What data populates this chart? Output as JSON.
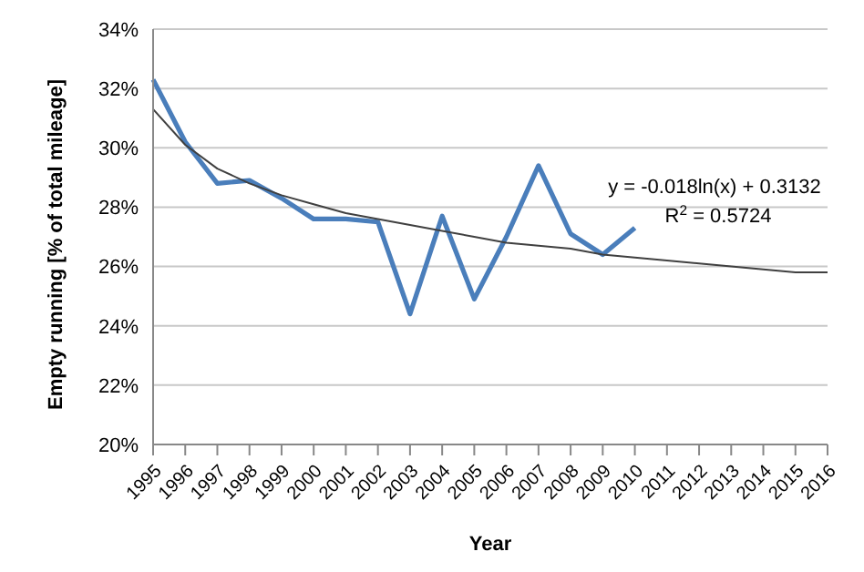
{
  "chart_data": {
    "type": "line",
    "xlabel": "Year",
    "ylabel": "Empty running [% of total mileage]",
    "categories": [
      "1995",
      "1996",
      "1997",
      "1998",
      "1999",
      "2000",
      "2001",
      "2002",
      "2003",
      "2004",
      "2005",
      "2006",
      "2007",
      "2008",
      "2009",
      "2010",
      "2011",
      "2012",
      "2013",
      "2014",
      "2015",
      "2016"
    ],
    "series": [
      {
        "color": "#4a7ebb",
        "values": [
          32.3,
          30.2,
          28.8,
          28.9,
          28.3,
          27.6,
          27.6,
          27.5,
          24.4,
          27.7,
          24.9,
          27.0,
          29.4,
          27.1,
          26.4,
          27.3,
          null,
          null,
          null,
          null,
          null,
          null
        ]
      },
      {
        "color": "#404040",
        "values": [
          31.3,
          30.1,
          29.3,
          28.8,
          28.4,
          28.1,
          27.8,
          27.6,
          27.4,
          27.2,
          27.0,
          26.8,
          26.7,
          26.6,
          26.4,
          26.3,
          26.2,
          26.1,
          26.0,
          25.9,
          25.8,
          25.8
        ]
      }
    ],
    "ylim": [
      20,
      34
    ],
    "yticks": [
      {
        "value": 20,
        "label": "20%"
      },
      {
        "value": 22,
        "label": "22%"
      },
      {
        "value": 24,
        "label": "24%"
      },
      {
        "value": 26,
        "label": "26%"
      },
      {
        "value": 28,
        "label": "28%"
      },
      {
        "value": 30,
        "label": "30%"
      },
      {
        "value": 32,
        "label": "32%"
      },
      {
        "value": 34,
        "label": "34%"
      }
    ],
    "grid": "y",
    "marker": "none",
    "line_style": "solid",
    "annotations": [
      "y = -0.018ln(x) + 0.3132",
      "R$^{2}$ = 0.5724"
    ]
  }
}
